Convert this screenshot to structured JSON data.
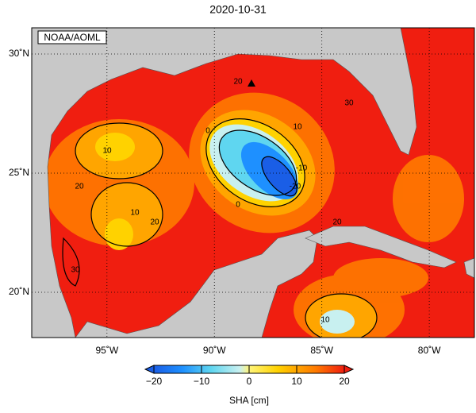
{
  "title": "2020-10-31",
  "badge": "NOAA/AOML",
  "map": {
    "xlim": [
      -98.5,
      -77.9
    ],
    "ylim": [
      18.1,
      31.1
    ],
    "xticks": [
      {
        "value": -95,
        "label": "95˚W"
      },
      {
        "value": -90,
        "label": "90˚W"
      },
      {
        "value": -85,
        "label": "85˚W"
      },
      {
        "value": -80,
        "label": "80˚W"
      }
    ],
    "yticks": [
      {
        "value": 20,
        "label": "20˚N"
      },
      {
        "value": 25,
        "label": "25˚N"
      },
      {
        "value": 30,
        "label": "30˚N"
      }
    ],
    "contour_labels": [
      20,
      30,
      10,
      0,
      10,
      20,
      10,
      20,
      -10,
      -20,
      0,
      30,
      20,
      10
    ]
  },
  "colorbar": {
    "label": "SHA [cm]",
    "lim": [
      -20,
      20
    ],
    "ticks": [
      {
        "value": -20,
        "label": "−20"
      },
      {
        "value": -10,
        "label": "−10"
      },
      0,
      10,
      20
    ]
  }
}
